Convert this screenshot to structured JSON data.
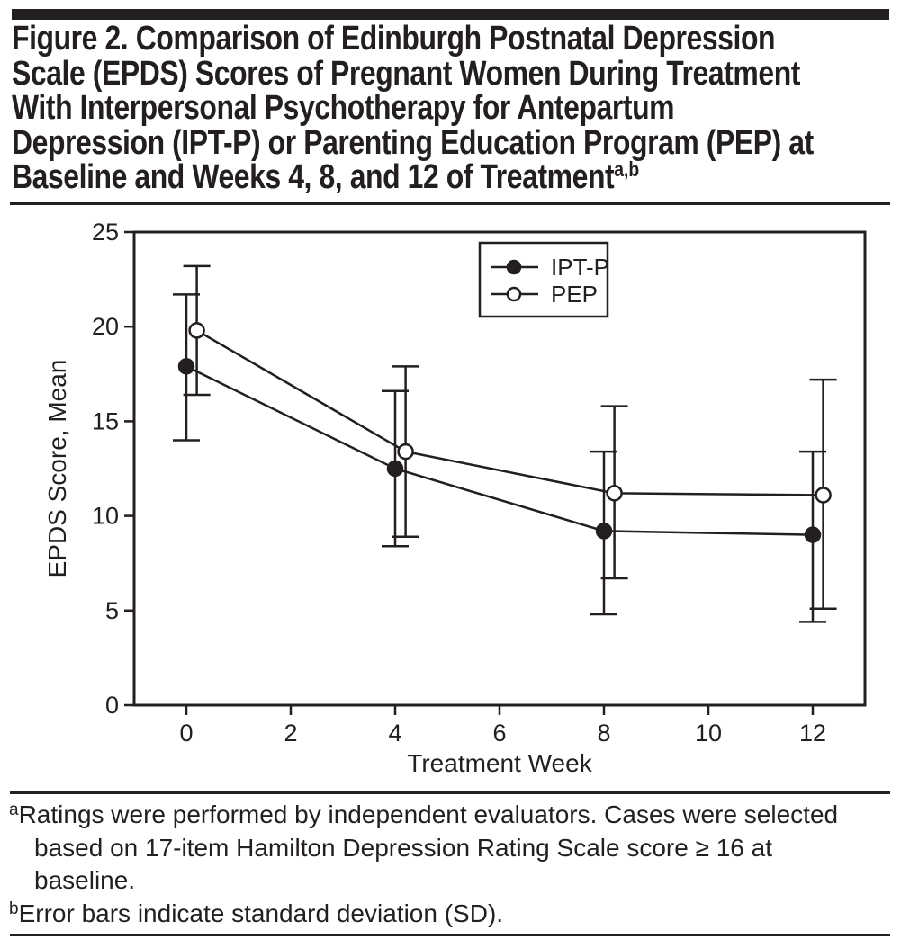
{
  "colors": {
    "ink": "#231f20",
    "background": "#ffffff"
  },
  "figure": {
    "title_lines": [
      "Figure 2. Comparison of Edinburgh Postnatal Depression",
      "Scale (EPDS) Scores of Pregnant Women During Treatment",
      "With Interpersonal Psychotherapy for Antepartum",
      "Depression (IPT-P) or Parenting Education Program (PEP) at",
      "Baseline and Weeks 4, 8, and 12 of Treatment"
    ],
    "title_superscript": "a,b"
  },
  "chart_data": {
    "type": "line",
    "title": "",
    "xlabel": "Treatment Week",
    "ylabel": "EPDS Score, Mean",
    "x_ticks": [
      0,
      2,
      4,
      6,
      8,
      10,
      12
    ],
    "y_ticks": [
      0,
      5,
      10,
      15,
      20,
      25
    ],
    "xlim": [
      -1.0,
      13.0
    ],
    "ylim": [
      0,
      25
    ],
    "grid": false,
    "legend_position": "top-center",
    "error_bars_meaning": "standard deviation (SD)",
    "x": [
      0,
      4,
      8,
      12
    ],
    "series": [
      {
        "name": "IPT-P",
        "marker": "filled-circle",
        "x_offset": 0.0,
        "means": [
          17.9,
          12.5,
          9.2,
          9.0
        ],
        "err_high": [
          21.7,
          16.6,
          13.4,
          13.4
        ],
        "err_low": [
          14.0,
          8.4,
          4.8,
          4.4
        ]
      },
      {
        "name": "PEP",
        "marker": "open-circle",
        "x_offset": 0.2,
        "means": [
          19.8,
          13.4,
          11.2,
          11.1
        ],
        "err_high": [
          23.2,
          17.9,
          15.8,
          17.2
        ],
        "err_low": [
          16.4,
          8.9,
          6.7,
          5.1
        ]
      }
    ]
  },
  "footnotes": {
    "lines": [
      {
        "sup": "a",
        "text": "Ratings were performed by independent evaluators. Cases were selected"
      },
      {
        "sup": "",
        "text": "based on 17-item Hamilton Depression Rating Scale score ≥ 16 at"
      },
      {
        "sup": "",
        "text": "baseline."
      },
      {
        "sup": "b",
        "text": "Error bars indicate standard deviation (SD)."
      }
    ]
  }
}
